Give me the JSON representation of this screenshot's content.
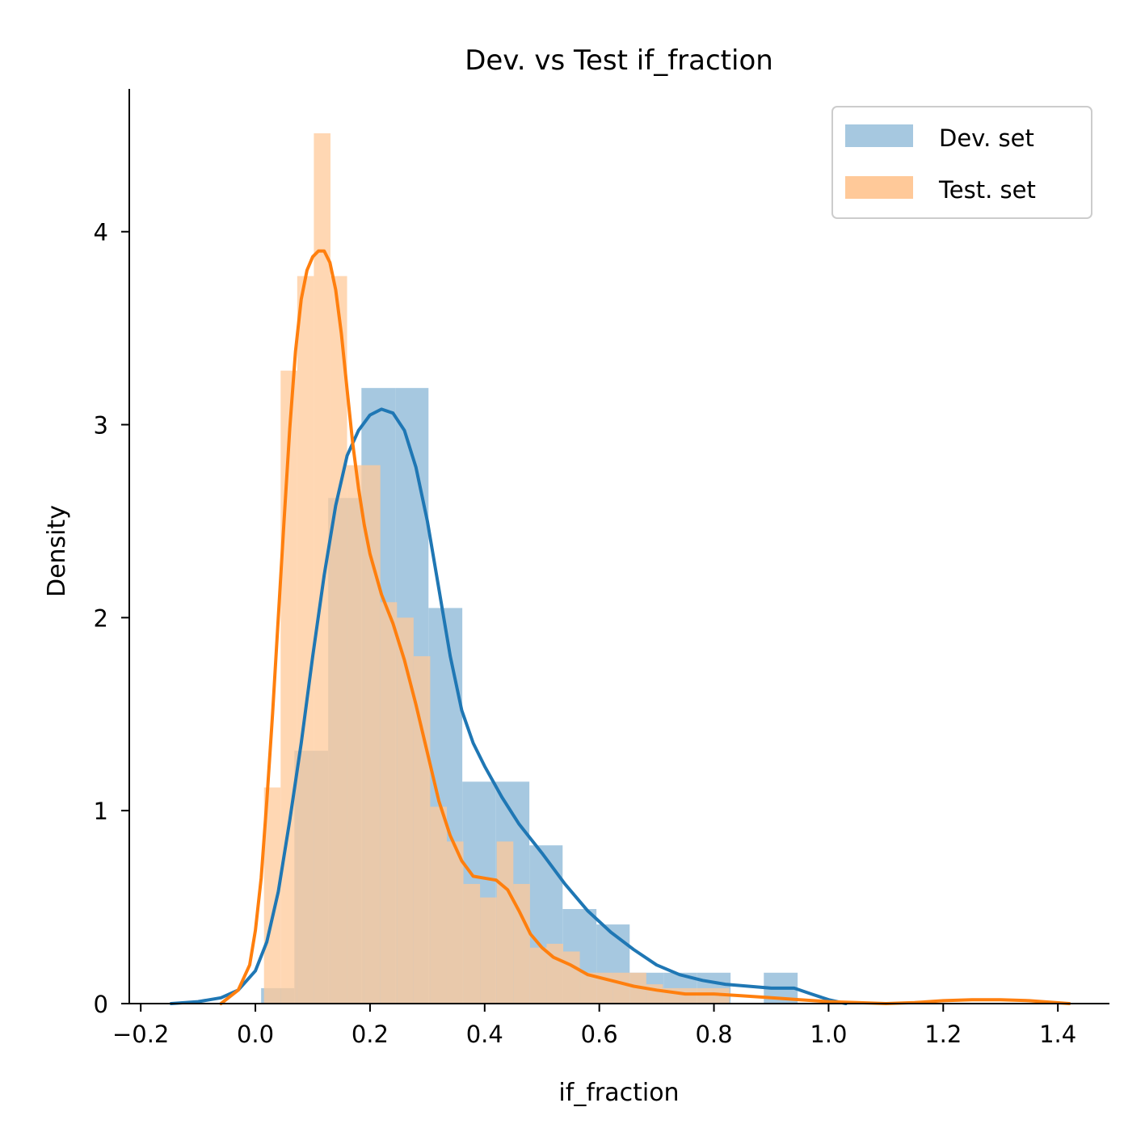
{
  "chart_data": {
    "type": "histogram",
    "title": "Dev. vs Test if_fraction",
    "xlabel": "if_fraction",
    "ylabel": "Density",
    "xlim": [
      -0.22,
      1.49
    ],
    "ylim": [
      0,
      4.74
    ],
    "xticks": [
      -0.2,
      0.0,
      0.2,
      0.4,
      0.6,
      0.8,
      1.0,
      1.2,
      1.4
    ],
    "xtick_labels": [
      "−0.2",
      "0.0",
      "0.2",
      "0.4",
      "0.6",
      "0.8",
      "1.0",
      "1.2",
      "1.4"
    ],
    "yticks": [
      0,
      1,
      2,
      3,
      4
    ],
    "ytick_labels": [
      "0",
      "1",
      "2",
      "3",
      "4"
    ],
    "legend_position": "top-right",
    "grid": false,
    "series": [
      {
        "name": "Dev. set",
        "hist_color": "#a6c8e0",
        "line_color": "#1f77b4",
        "bins": [
          [
            0.01,
            0.068,
            0.08
          ],
          [
            0.068,
            0.127,
            1.31
          ],
          [
            0.127,
            0.185,
            2.62
          ],
          [
            0.185,
            0.244,
            3.19
          ],
          [
            0.244,
            0.302,
            3.19
          ],
          [
            0.302,
            0.361,
            2.05
          ],
          [
            0.361,
            0.419,
            1.15
          ],
          [
            0.419,
            0.478,
            1.15
          ],
          [
            0.478,
            0.536,
            0.82
          ],
          [
            0.536,
            0.595,
            0.49
          ],
          [
            0.595,
            0.653,
            0.41
          ],
          [
            0.653,
            0.712,
            0.16
          ],
          [
            0.712,
            0.77,
            0.16
          ],
          [
            0.77,
            0.829,
            0.16
          ],
          [
            0.829,
            0.887,
            0.0
          ],
          [
            0.887,
            0.946,
            0.16
          ]
        ],
        "kde": [
          [
            -0.147,
            0.0
          ],
          [
            -0.1,
            0.01
          ],
          [
            -0.06,
            0.03
          ],
          [
            -0.03,
            0.07
          ],
          [
            0.0,
            0.17
          ],
          [
            0.02,
            0.32
          ],
          [
            0.04,
            0.58
          ],
          [
            0.06,
            0.95
          ],
          [
            0.08,
            1.35
          ],
          [
            0.1,
            1.8
          ],
          [
            0.12,
            2.22
          ],
          [
            0.14,
            2.58
          ],
          [
            0.16,
            2.84
          ],
          [
            0.18,
            2.97
          ],
          [
            0.2,
            3.05
          ],
          [
            0.22,
            3.08
          ],
          [
            0.24,
            3.06
          ],
          [
            0.26,
            2.97
          ],
          [
            0.28,
            2.78
          ],
          [
            0.3,
            2.5
          ],
          [
            0.32,
            2.15
          ],
          [
            0.34,
            1.8
          ],
          [
            0.36,
            1.52
          ],
          [
            0.38,
            1.35
          ],
          [
            0.4,
            1.23
          ],
          [
            0.43,
            1.07
          ],
          [
            0.46,
            0.93
          ],
          [
            0.5,
            0.78
          ],
          [
            0.54,
            0.62
          ],
          [
            0.58,
            0.48
          ],
          [
            0.62,
            0.37
          ],
          [
            0.66,
            0.28
          ],
          [
            0.7,
            0.2
          ],
          [
            0.74,
            0.15
          ],
          [
            0.78,
            0.12
          ],
          [
            0.82,
            0.1
          ],
          [
            0.86,
            0.09
          ],
          [
            0.9,
            0.08
          ],
          [
            0.94,
            0.08
          ],
          [
            0.97,
            0.05
          ],
          [
            1.0,
            0.02
          ],
          [
            1.03,
            0.0
          ]
        ]
      },
      {
        "name": "Test. set",
        "hist_color": "#ffc999",
        "line_color": "#ff7f0e",
        "bins": [
          [
            0.015,
            0.044,
            1.12
          ],
          [
            0.044,
            0.073,
            3.28
          ],
          [
            0.073,
            0.102,
            3.77
          ],
          [
            0.102,
            0.131,
            4.51
          ],
          [
            0.131,
            0.16,
            3.77
          ],
          [
            0.16,
            0.189,
            2.79
          ],
          [
            0.189,
            0.218,
            2.79
          ],
          [
            0.218,
            0.247,
            2.08
          ],
          [
            0.247,
            0.276,
            2.0
          ],
          [
            0.276,
            0.305,
            1.8
          ],
          [
            0.305,
            0.334,
            1.02
          ],
          [
            0.334,
            0.363,
            0.84
          ],
          [
            0.363,
            0.392,
            0.62
          ],
          [
            0.392,
            0.421,
            0.55
          ],
          [
            0.421,
            0.45,
            0.84
          ],
          [
            0.45,
            0.479,
            0.62
          ],
          [
            0.479,
            0.508,
            0.29
          ],
          [
            0.508,
            0.537,
            0.31
          ],
          [
            0.537,
            0.566,
            0.27
          ],
          [
            0.566,
            0.595,
            0.16
          ],
          [
            0.595,
            0.624,
            0.16
          ],
          [
            0.624,
            0.653,
            0.16
          ],
          [
            0.653,
            0.682,
            0.16
          ],
          [
            0.682,
            0.711,
            0.1
          ],
          [
            0.711,
            0.74,
            0.08
          ],
          [
            0.74,
            0.769,
            0.08
          ],
          [
            0.769,
            0.798,
            0.08
          ],
          [
            0.798,
            0.827,
            0.08
          ]
        ],
        "kde": [
          [
            -0.06,
            0.0
          ],
          [
            -0.03,
            0.07
          ],
          [
            -0.01,
            0.2
          ],
          [
            0.0,
            0.38
          ],
          [
            0.01,
            0.65
          ],
          [
            0.02,
            1.05
          ],
          [
            0.03,
            1.5
          ],
          [
            0.04,
            2.0
          ],
          [
            0.05,
            2.5
          ],
          [
            0.06,
            2.98
          ],
          [
            0.07,
            3.38
          ],
          [
            0.08,
            3.65
          ],
          [
            0.09,
            3.8
          ],
          [
            0.1,
            3.87
          ],
          [
            0.11,
            3.9
          ],
          [
            0.12,
            3.9
          ],
          [
            0.13,
            3.84
          ],
          [
            0.14,
            3.7
          ],
          [
            0.15,
            3.47
          ],
          [
            0.16,
            3.18
          ],
          [
            0.17,
            2.9
          ],
          [
            0.18,
            2.67
          ],
          [
            0.19,
            2.48
          ],
          [
            0.2,
            2.33
          ],
          [
            0.22,
            2.12
          ],
          [
            0.24,
            1.97
          ],
          [
            0.26,
            1.78
          ],
          [
            0.28,
            1.55
          ],
          [
            0.3,
            1.3
          ],
          [
            0.32,
            1.05
          ],
          [
            0.34,
            0.87
          ],
          [
            0.36,
            0.74
          ],
          [
            0.38,
            0.66
          ],
          [
            0.4,
            0.65
          ],
          [
            0.42,
            0.64
          ],
          [
            0.44,
            0.59
          ],
          [
            0.46,
            0.48
          ],
          [
            0.48,
            0.36
          ],
          [
            0.5,
            0.29
          ],
          [
            0.52,
            0.24
          ],
          [
            0.55,
            0.2
          ],
          [
            0.58,
            0.15
          ],
          [
            0.62,
            0.12
          ],
          [
            0.66,
            0.09
          ],
          [
            0.7,
            0.07
          ],
          [
            0.75,
            0.05
          ],
          [
            0.8,
            0.05
          ],
          [
            0.85,
            0.04
          ],
          [
            0.9,
            0.03
          ],
          [
            0.95,
            0.02
          ],
          [
            1.0,
            0.01
          ],
          [
            1.05,
            0.005
          ],
          [
            1.1,
            0.0
          ],
          [
            1.15,
            0.005
          ],
          [
            1.2,
            0.015
          ],
          [
            1.25,
            0.02
          ],
          [
            1.3,
            0.02
          ],
          [
            1.35,
            0.015
          ],
          [
            1.42,
            0.0
          ]
        ]
      }
    ]
  }
}
